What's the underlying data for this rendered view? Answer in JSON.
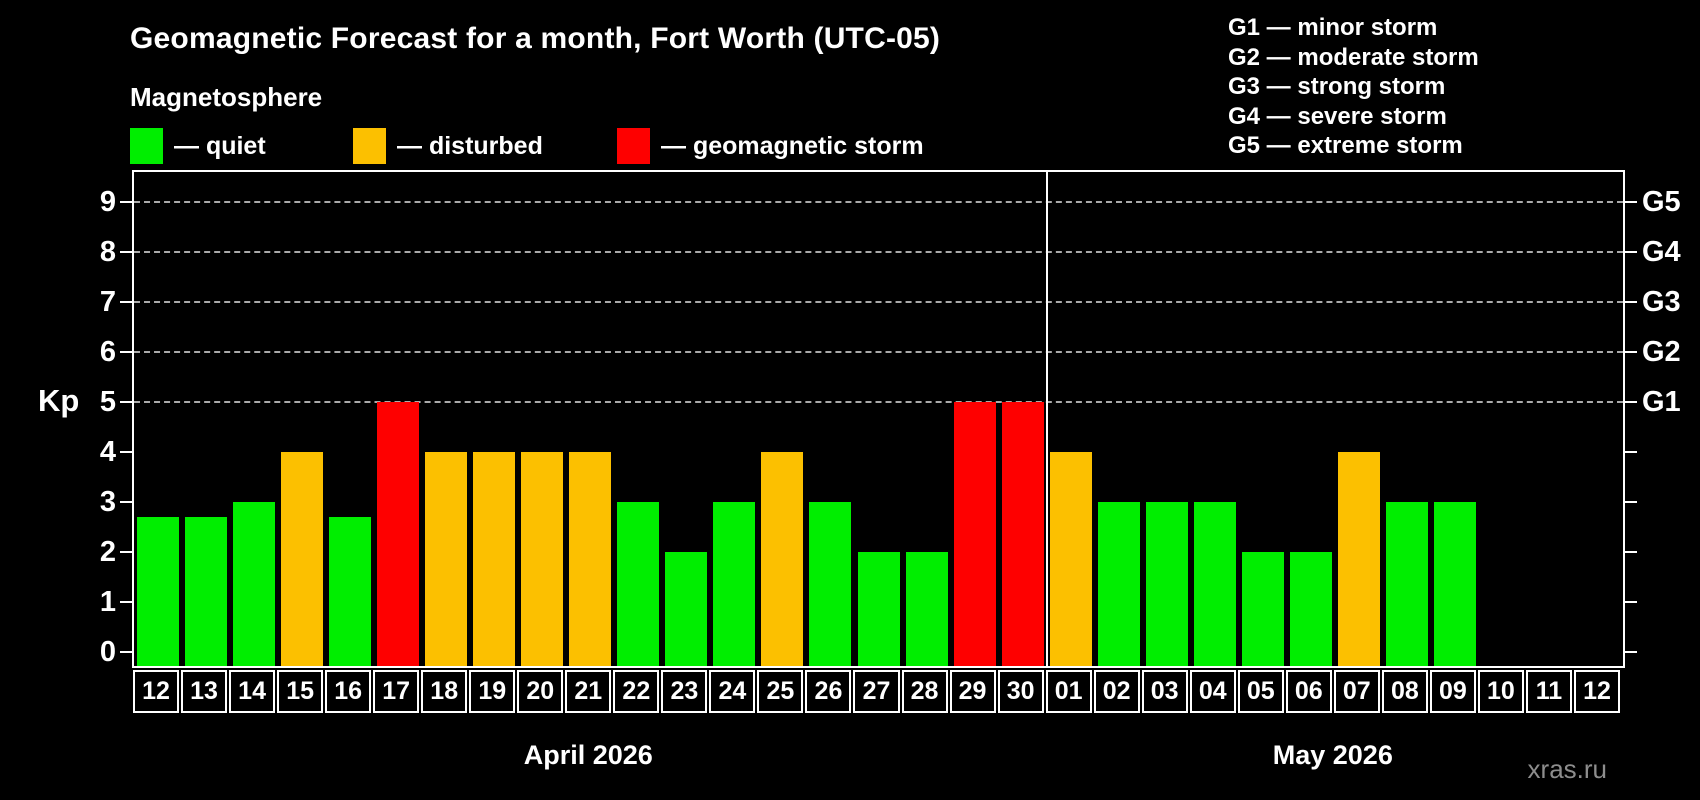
{
  "header": {
    "title": "Geomagnetic Forecast for a month, Fort Worth (UTC-05)",
    "subtitle": "Magnetosphere"
  },
  "legend": {
    "items": [
      {
        "label": "— quiet",
        "color": "#00ee00",
        "status": "quiet"
      },
      {
        "label": "— disturbed",
        "color": "#fcc000",
        "status": "disturbed"
      },
      {
        "label": "— geomagnetic storm",
        "color": "#fe0000",
        "status": "storm"
      }
    ]
  },
  "g_scale_legend": {
    "items": [
      "G1 — minor storm",
      "G2 — moderate storm",
      "G3 — strong storm",
      "G4 — severe storm",
      "G5 — extreme storm"
    ]
  },
  "watermark": "xras.ru",
  "chart_data": {
    "type": "bar",
    "title": "Geomagnetic Forecast for a month, Fort Worth (UTC-05)",
    "ylabel": "Kp",
    "ylim": [
      0,
      9
    ],
    "yticks": [
      0,
      1,
      2,
      3,
      4,
      5,
      6,
      7,
      8,
      9
    ],
    "grid_levels_dashed": [
      5,
      6,
      7,
      8,
      9
    ],
    "grid_on": true,
    "legend_position": "top",
    "right_axis": [
      {
        "label": "G1",
        "kp": 5
      },
      {
        "label": "G2",
        "kp": 6
      },
      {
        "label": "G3",
        "kp": 7
      },
      {
        "label": "G4",
        "kp": 8
      },
      {
        "label": "G5",
        "kp": 9
      }
    ],
    "status_colors": {
      "quiet": "#00ee00",
      "disturbed": "#fcc000",
      "storm": "#fe0000"
    },
    "months": [
      {
        "label": "April 2026",
        "days": [
          {
            "day": "12",
            "kp": 2.7,
            "status": "quiet"
          },
          {
            "day": "13",
            "kp": 2.7,
            "status": "quiet"
          },
          {
            "day": "14",
            "kp": 3,
            "status": "quiet"
          },
          {
            "day": "15",
            "kp": 4,
            "status": "disturbed"
          },
          {
            "day": "16",
            "kp": 2.7,
            "status": "quiet"
          },
          {
            "day": "17",
            "kp": 5,
            "status": "storm"
          },
          {
            "day": "18",
            "kp": 4,
            "status": "disturbed"
          },
          {
            "day": "19",
            "kp": 4,
            "status": "disturbed"
          },
          {
            "day": "20",
            "kp": 4,
            "status": "disturbed"
          },
          {
            "day": "21",
            "kp": 4,
            "status": "disturbed"
          },
          {
            "day": "22",
            "kp": 3,
            "status": "quiet"
          },
          {
            "day": "23",
            "kp": 2,
            "status": "quiet"
          },
          {
            "day": "24",
            "kp": 3,
            "status": "quiet"
          },
          {
            "day": "25",
            "kp": 4,
            "status": "disturbed"
          },
          {
            "day": "26",
            "kp": 3,
            "status": "quiet"
          },
          {
            "day": "27",
            "kp": 2,
            "status": "quiet"
          },
          {
            "day": "28",
            "kp": 2,
            "status": "quiet"
          },
          {
            "day": "29",
            "kp": 5,
            "status": "storm"
          },
          {
            "day": "30",
            "kp": 5,
            "status": "storm"
          }
        ]
      },
      {
        "label": "May 2026",
        "days": [
          {
            "day": "01",
            "kp": 4,
            "status": "disturbed"
          },
          {
            "day": "02",
            "kp": 3,
            "status": "quiet"
          },
          {
            "day": "03",
            "kp": 3,
            "status": "quiet"
          },
          {
            "day": "04",
            "kp": 3,
            "status": "quiet"
          },
          {
            "day": "05",
            "kp": 2,
            "status": "quiet"
          },
          {
            "day": "06",
            "kp": 2,
            "status": "quiet"
          },
          {
            "day": "07",
            "kp": 4,
            "status": "disturbed"
          },
          {
            "day": "08",
            "kp": 3,
            "status": "quiet"
          },
          {
            "day": "09",
            "kp": 3,
            "status": "quiet"
          },
          {
            "day": "10",
            "kp": null,
            "status": "none"
          },
          {
            "day": "11",
            "kp": null,
            "status": "none"
          },
          {
            "day": "12",
            "kp": null,
            "status": "none"
          }
        ]
      }
    ]
  }
}
